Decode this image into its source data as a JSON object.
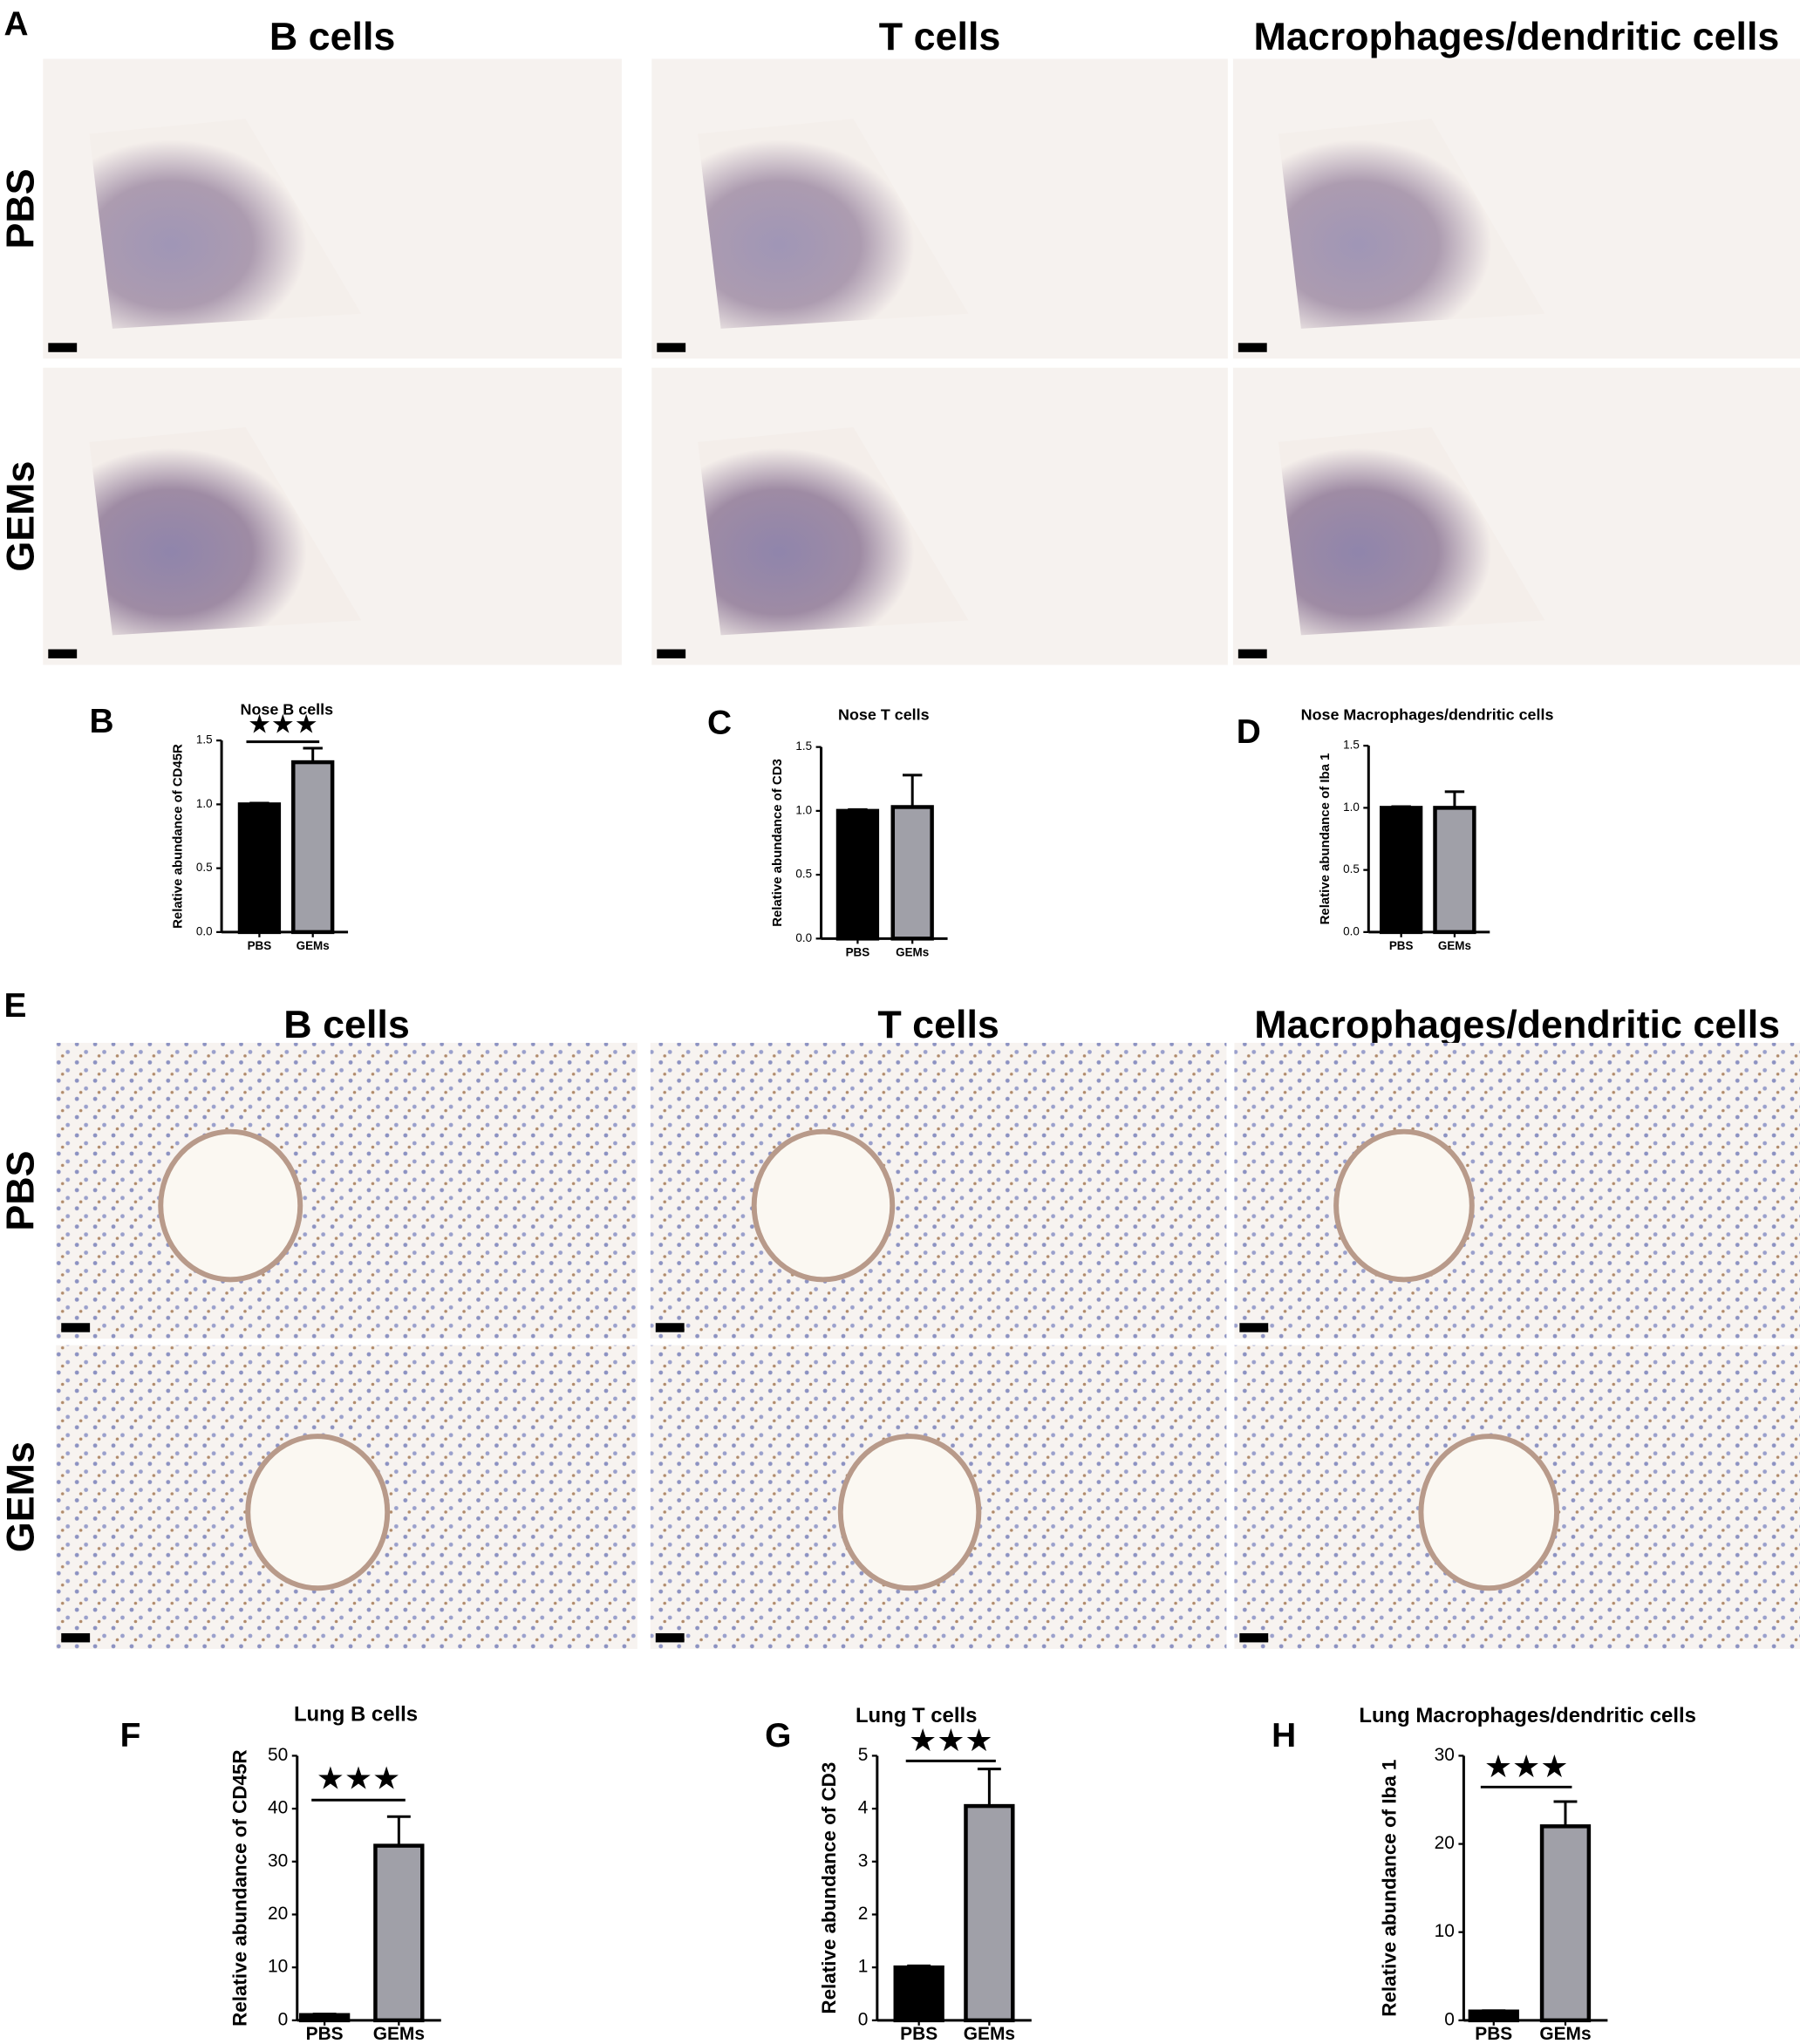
{
  "micrographs": [
    {
      "panel": "A",
      "columns": [
        "B cells",
        "T cells",
        "Macrophages/dendritic cells"
      ],
      "rows": [
        "PBS",
        "GEMs"
      ]
    },
    {
      "panel": "E",
      "columns": [
        "B cells",
        "T cells",
        "Macrophages/dendritic cells"
      ],
      "rows": [
        "PBS",
        "GEMs"
      ]
    }
  ],
  "chart_data": [
    {
      "type": "bar",
      "panel": "B",
      "title": "Nose B cells",
      "ylabel": "Relative abundance of CD45R",
      "categories": [
        "PBS",
        "GEMs"
      ],
      "values": [
        1.0,
        1.33
      ],
      "errors": [
        0.01,
        0.11
      ],
      "colors": [
        "#000000",
        "#a0a0a8"
      ],
      "ylim": [
        0,
        1.5
      ],
      "yticks": [
        {
          "value": 0,
          "label": "0.0"
        },
        0.5,
        {
          "value": 1,
          "label": "1.0"
        },
        1.5
      ],
      "significance": "★★★"
    },
    {
      "type": "bar",
      "panel": "C",
      "title": "Nose T cells",
      "ylabel": "Relative abundance of CD3",
      "categories": [
        "PBS",
        "GEMs"
      ],
      "values": [
        1.0,
        1.03
      ],
      "errors": [
        0.01,
        0.25
      ],
      "colors": [
        "#000000",
        "#a0a0a8"
      ],
      "ylim": [
        0,
        1.5
      ],
      "yticks": [
        {
          "value": 0,
          "label": "0.0"
        },
        0.5,
        {
          "value": 1,
          "label": "1.0"
        },
        1.5
      ]
    },
    {
      "type": "bar",
      "panel": "D",
      "title": "Nose Macrophages/dendritic cells",
      "ylabel": "Relative abundance of Iba 1",
      "categories": [
        "PBS",
        "GEMs"
      ],
      "values": [
        1.0,
        1.0
      ],
      "errors": [
        0.01,
        0.13
      ],
      "colors": [
        "#000000",
        "#a0a0a8"
      ],
      "ylim": [
        0,
        1.5
      ],
      "yticks": [
        {
          "value": 0,
          "label": "0.0"
        },
        0.5,
        {
          "value": 1,
          "label": "1.0"
        },
        1.5
      ]
    },
    {
      "type": "bar",
      "panel": "F",
      "title": "Lung B cells",
      "ylabel": "Relative abundance of CD45R",
      "categories": [
        "PBS",
        "GEMs"
      ],
      "values": [
        1,
        33
      ],
      "errors": [
        0.2,
        5.5
      ],
      "colors": [
        "#000000",
        "#a0a0a8"
      ],
      "ylim": [
        0,
        50
      ],
      "yticks": [
        0,
        10,
        20,
        30,
        40,
        50
      ],
      "significance": "★★★"
    },
    {
      "type": "bar",
      "panel": "G",
      "title": "Lung T cells",
      "ylabel": "Relative abundance of CD3",
      "categories": [
        "PBS",
        "GEMs"
      ],
      "values": [
        1.0,
        4.05
      ],
      "errors": [
        0.03,
        0.7
      ],
      "colors": [
        "#000000",
        "#a0a0a8"
      ],
      "ylim": [
        0,
        5
      ],
      "yticks": [
        0,
        1,
        2,
        3,
        4,
        5
      ],
      "significance": "★★★"
    },
    {
      "type": "bar",
      "panel": "H",
      "title": "Lung Macrophages/dendritic cells",
      "ylabel": "Relative abundance of Iba 1",
      "categories": [
        "PBS",
        "GEMs"
      ],
      "values": [
        1,
        22
      ],
      "errors": [
        0.1,
        2.8
      ],
      "colors": [
        "#000000",
        "#a0a0a8"
      ],
      "ylim": [
        0,
        30
      ],
      "yticks": [
        0,
        10,
        20,
        30
      ],
      "significance": "★★★"
    }
  ]
}
